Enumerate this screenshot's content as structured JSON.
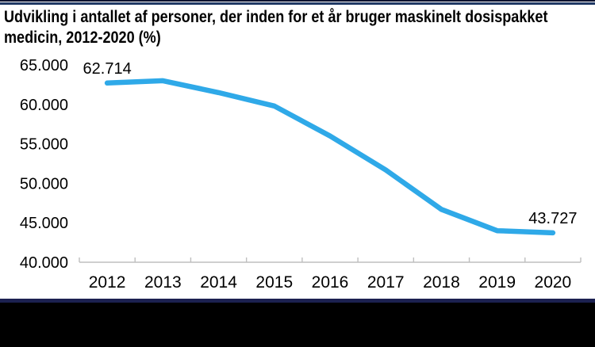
{
  "title": {
    "line1": "Udvikling i antallet af personer, der inden for et år bruger maskinelt dosispakket",
    "line2": "medicin, 2012-2020 (%)"
  },
  "colors": {
    "line": "#2fa9e8",
    "axis": "#bfbfbf",
    "text": "#000000",
    "navy_rule_top": "#1f3864",
    "navy_rule_bottom": "#1c2150",
    "footer_bar": "#000000"
  },
  "chart_data": {
    "type": "line",
    "title": "Udvikling i antallet af personer, der inden for et år bruger maskinelt dosispakket medicin, 2012-2020 (%)",
    "categories": [
      "2012",
      "2013",
      "2014",
      "2015",
      "2016",
      "2017",
      "2018",
      "2019",
      "2020"
    ],
    "series": [
      {
        "values": [
          62714,
          63000,
          61500,
          59800,
          56000,
          51700,
          46700,
          44000,
          43727
        ],
        "color": "#2fa9e8"
      }
    ],
    "labeled_points": [
      {
        "category": "2012",
        "label": "62.714"
      },
      {
        "category": "2020",
        "label": "43.727"
      }
    ],
    "ylim": [
      40000,
      65000
    ],
    "ytick_step": 5000,
    "ytick_labels": [
      "65.000",
      "60.000",
      "55.000",
      "50.000",
      "45.000",
      "40.000"
    ],
    "grid": false,
    "legend": false
  }
}
